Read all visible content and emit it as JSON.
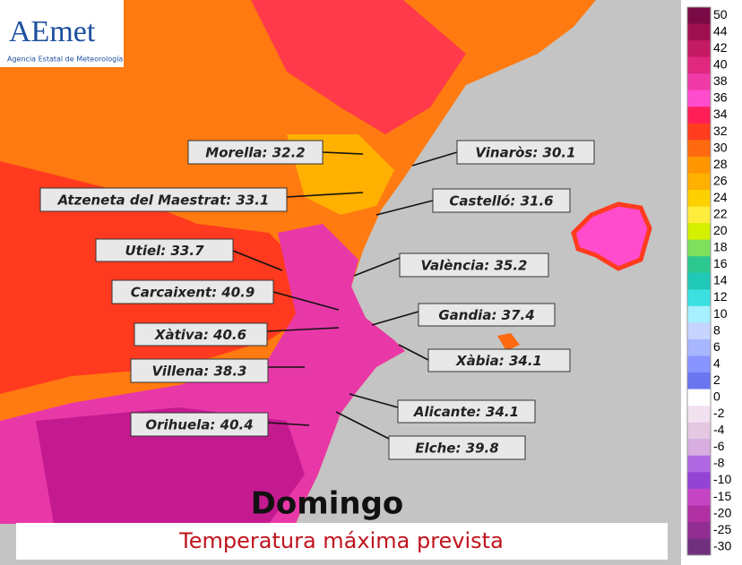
{
  "logo": {
    "brand": "AEmet",
    "agency": "Agencia Estatal de Meteorología"
  },
  "day": "Domingo",
  "subtitle": "Temperatura máxima prevista",
  "labels": [
    "Morella: 32.2",
    "Vinaròs: 30.1",
    "Atzeneta del Maestrat: 33.1",
    "Castelló: 31.6",
    "Utiel: 33.7",
    "València: 35.2",
    "Carcaixent: 40.9",
    "Gandia: 37.4",
    "Xàtiva: 40.6",
    "Xàbia: 34.1",
    "Villena: 38.3",
    "Alicante: 34.1",
    "Orihuela: 40.4",
    "Elche: 39.8"
  ],
  "legend": {
    "ticks": [
      50,
      44,
      42,
      40,
      38,
      36,
      34,
      32,
      30,
      28,
      26,
      24,
      22,
      20,
      18,
      16,
      14,
      12,
      10,
      8,
      6,
      4,
      2,
      0,
      -2,
      -4,
      -6,
      -8,
      -10,
      -15,
      -20,
      -25,
      -30
    ],
    "colors": [
      "#7a0a46",
      "#a0104f",
      "#c41a62",
      "#e0287e",
      "#f03aa8",
      "#ff4ccc",
      "#ff1e56",
      "#ff3c1e",
      "#ff6a10",
      "#ff9600",
      "#ffb000",
      "#ffd000",
      "#ffec3c",
      "#d4f000",
      "#7ee05c",
      "#2cc890",
      "#20c8b8",
      "#3ce0e0",
      "#a6f0ff",
      "#c6d4ff",
      "#a8b6ff",
      "#8894ff",
      "#6a76f0",
      "#ffffff",
      "#f2e2f0",
      "#e4c8e2",
      "#d8aee0",
      "#b068e2",
      "#9444d4",
      "#c444c4",
      "#b030a4",
      "#922e92",
      "#70307e"
    ]
  }
}
